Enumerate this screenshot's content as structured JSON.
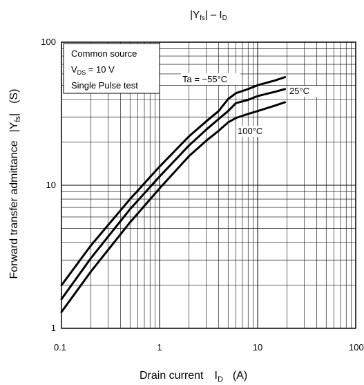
{
  "chart_data": {
    "type": "line",
    "title": "|Yfs| – ID",
    "title_parts": {
      "a": "|Y",
      "a_sub": "fs",
      "b": "| – I",
      "b_sub": "D"
    },
    "xlabel": "Drain current   ID   (A)",
    "xlabel_parts": {
      "text": "Drain current",
      "sym": "I",
      "sym_sub": "D",
      "unit": "(A)"
    },
    "ylabel": "Forward transfer admittance   |Yfs|   (S)",
    "ylabel_parts": {
      "text": "Forward transfer admittance",
      "sym_a": "|Y",
      "sym_sub": "fs",
      "sym_b": "|",
      "unit": "(S)"
    },
    "x_scale": "log",
    "y_scale": "log",
    "xlim": [
      0.1,
      100
    ],
    "ylim": [
      1,
      100
    ],
    "x_ticks": [
      0.1,
      1,
      10,
      100
    ],
    "x_tick_labels": [
      "0.1",
      "1",
      "10",
      "100"
    ],
    "y_ticks": [
      1,
      10,
      100
    ],
    "y_tick_labels": [
      "1",
      "10",
      "100"
    ],
    "grid": true,
    "conditions": {
      "line1": "Common source",
      "line2_sym": "V",
      "line2_sub": "DS",
      "line2_rest": " = 10 V",
      "line3": "Single Pulse test"
    },
    "series": [
      {
        "name": "Ta = −55°C",
        "x": [
          0.1,
          0.2,
          0.5,
          1,
          2,
          3,
          4,
          5,
          6,
          8,
          10,
          15,
          19
        ],
        "y": [
          2.0,
          3.8,
          8.0,
          13.5,
          22.0,
          28.0,
          33.0,
          40.0,
          44.0,
          47.0,
          50.0,
          54.0,
          57.0
        ]
      },
      {
        "name": "25°C",
        "x": [
          0.1,
          0.2,
          0.5,
          1,
          2,
          3,
          4,
          5,
          6,
          8,
          10,
          15,
          19
        ],
        "y": [
          1.6,
          3.1,
          6.8,
          11.5,
          19.0,
          24.5,
          29.0,
          33.0,
          37.5,
          39.5,
          42.0,
          45.0,
          47.0
        ]
      },
      {
        "name": "100°C",
        "x": [
          0.1,
          0.2,
          0.5,
          1,
          2,
          3,
          4,
          5,
          6,
          8,
          10,
          15,
          19
        ],
        "y": [
          1.3,
          2.5,
          5.5,
          9.5,
          16.0,
          20.5,
          24.0,
          27.5,
          29.5,
          31.5,
          33.0,
          36.0,
          38.0
        ]
      }
    ]
  }
}
